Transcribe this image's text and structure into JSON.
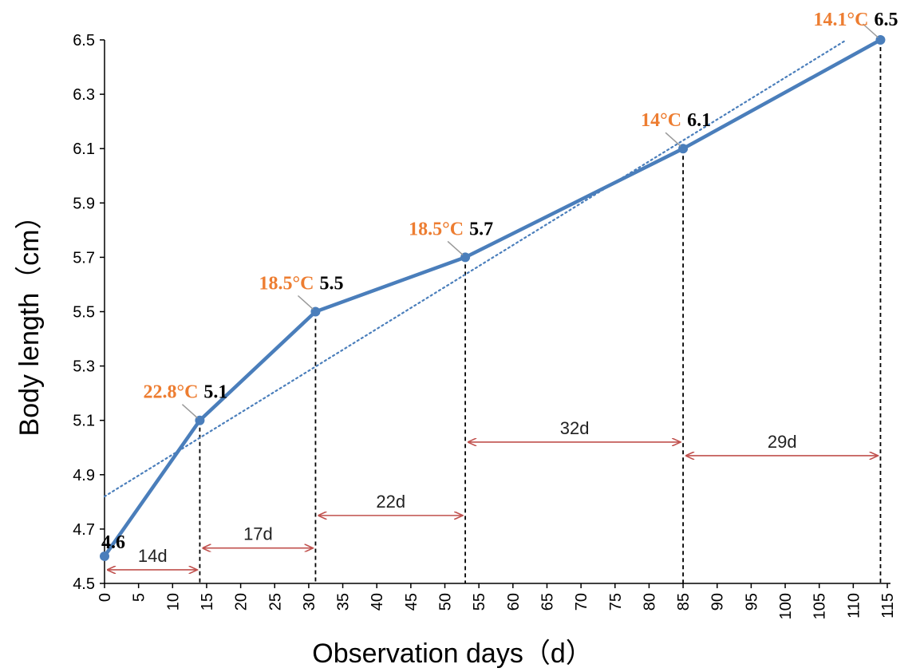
{
  "chart_data": {
    "type": "line",
    "xlabel": "Observation days（d）",
    "ylabel": "Body length（cm）",
    "xlim": [
      0,
      115
    ],
    "ylim": [
      4.5,
      6.5
    ],
    "x_ticks": [
      0,
      5,
      10,
      15,
      20,
      25,
      30,
      35,
      40,
      45,
      50,
      55,
      60,
      65,
      70,
      75,
      80,
      85,
      90,
      95,
      100,
      105,
      110,
      115
    ],
    "y_ticks": [
      "4.5",
      "4.7",
      "4.9",
      "5.1",
      "5.3",
      "5.5",
      "5.7",
      "5.9",
      "6.1",
      "6.3",
      "6.5"
    ],
    "grid": false,
    "legend": "none",
    "series": [
      {
        "color": "#4A7EBB",
        "points": [
          {
            "x": 0,
            "y": 4.6,
            "label": "4.6",
            "temp": ""
          },
          {
            "x": 14,
            "y": 5.1,
            "label": "5.1",
            "temp": "22.8°C"
          },
          {
            "x": 31,
            "y": 5.5,
            "label": "5.5",
            "temp": "18.5°C"
          },
          {
            "x": 53,
            "y": 5.7,
            "label": "5.7",
            "temp": "18.5°C"
          },
          {
            "x": 85,
            "y": 6.1,
            "label": "6.1",
            "temp": "14°C"
          },
          {
            "x": 114,
            "y": 6.5,
            "label": "6.5",
            "temp": "14.1°C"
          }
        ]
      }
    ],
    "trendline": {
      "style": "dotted",
      "color": "#4A7EBB",
      "x_start": 0,
      "y_start": 4.82,
      "x_end": 109,
      "y_end": 6.5
    },
    "intervals": [
      {
        "from": 0,
        "to": 14,
        "label": "14d",
        "y": 4.55
      },
      {
        "from": 14,
        "to": 31,
        "label": "17d",
        "y": 4.63
      },
      {
        "from": 31,
        "to": 53,
        "label": "22d",
        "y": 4.75
      },
      {
        "from": 53,
        "to": 85,
        "label": "32d",
        "y": 5.02
      },
      {
        "from": 85,
        "to": 114,
        "label": "29d",
        "y": 4.97
      }
    ],
    "colors": {
      "line": "#4A7EBB",
      "temperature": "#ED7D31",
      "interval_arrow": "#C0504D"
    }
  }
}
